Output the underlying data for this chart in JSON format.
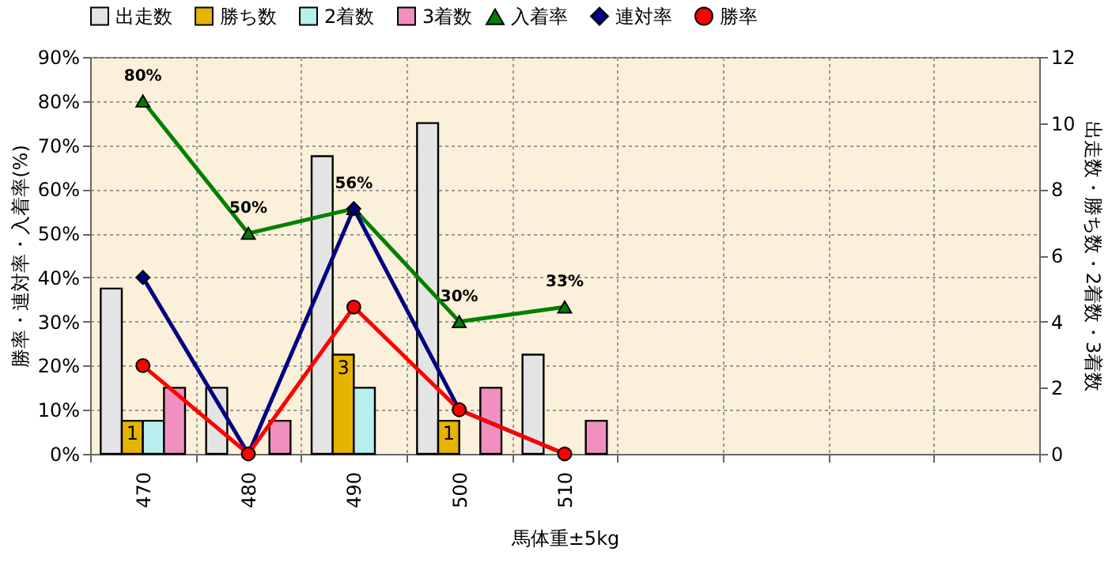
{
  "chart_data": {
    "type": "bar",
    "xlabel": "馬体重±5kg",
    "ylabel": "勝率・連対率・入着率(%)",
    "y2label": "出走数・勝ち数・2着数・3着数",
    "categories": [
      "470",
      "480",
      "490",
      "500",
      "510",
      null,
      null,
      null,
      null
    ],
    "series": [
      {
        "name": "出走数",
        "color": "#e4e4e4",
        "axis": "y2",
        "values": [
          5,
          2,
          9,
          10,
          3,
          null,
          null,
          null,
          null
        ]
      },
      {
        "name": "勝ち数",
        "color": "#e6b400",
        "axis": "y2",
        "values": [
          1,
          0,
          3,
          1,
          0,
          null,
          null,
          null,
          null
        ],
        "value_labels": [
          "1",
          null,
          "3",
          "1",
          null,
          null,
          null,
          null,
          null
        ]
      },
      {
        "name": "2着数",
        "color": "#b8f0f0",
        "axis": "y2",
        "values": [
          1,
          0,
          2,
          0,
          0,
          null,
          null,
          null,
          null
        ]
      },
      {
        "name": "3着数",
        "color": "#f090c0",
        "axis": "y2",
        "values": [
          2,
          1,
          0,
          2,
          1,
          null,
          null,
          null,
          null
        ]
      },
      {
        "name": "入着率",
        "type": "line",
        "marker": "triangle",
        "color": "#008000",
        "values": [
          80,
          50,
          55.6,
          30,
          33.3,
          null,
          null,
          null,
          null
        ],
        "value_labels": [
          "80%",
          "50%",
          "56%",
          "30%",
          "33%",
          null,
          null,
          null,
          null
        ]
      },
      {
        "name": "連対率",
        "type": "line",
        "marker": "diamond",
        "color": "#000080",
        "values": [
          40,
          0,
          55.6,
          10,
          0,
          null,
          null,
          null,
          null
        ]
      },
      {
        "name": "勝率",
        "type": "line",
        "marker": "circle",
        "color": "#ff0000",
        "values": [
          20,
          0,
          33.3,
          10,
          0,
          null,
          null,
          null,
          null
        ]
      }
    ],
    "ylim": [
      0,
      90
    ],
    "yticks": [
      {
        "value": 0,
        "label": "0%"
      },
      {
        "value": 10,
        "label": "10%"
      },
      {
        "value": 20,
        "label": "20%"
      },
      {
        "value": 30,
        "label": "30%"
      },
      {
        "value": 40,
        "label": "40%"
      },
      {
        "value": 50,
        "label": "50%"
      },
      {
        "value": 60,
        "label": "60%"
      },
      {
        "value": 70,
        "label": "70%"
      },
      {
        "value": 80,
        "label": "80%"
      },
      {
        "value": 90,
        "label": "90%"
      }
    ],
    "y2lim": [
      0,
      12
    ],
    "y2ticks": [
      0,
      2,
      4,
      6,
      8,
      10,
      12
    ],
    "grid": true,
    "legend": "top"
  }
}
